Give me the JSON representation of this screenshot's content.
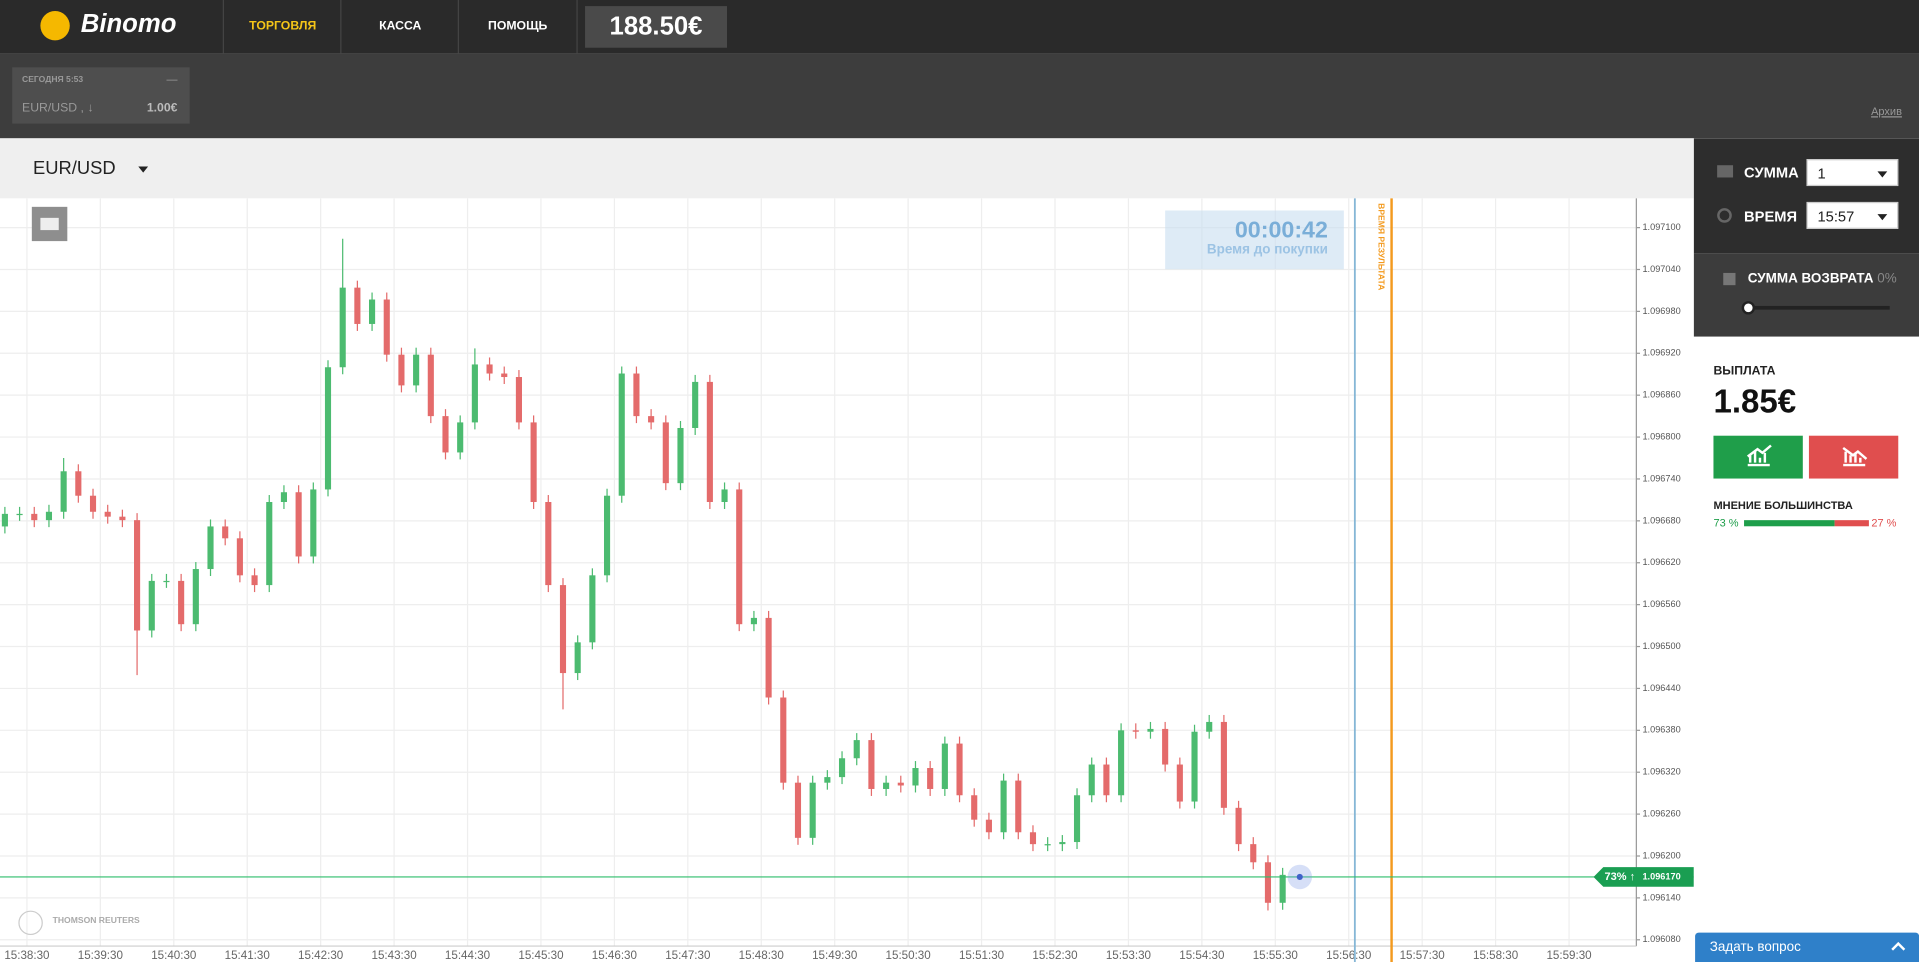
{
  "header": {
    "logo": "Binomo",
    "nav": [
      "ТОРГОВЛЯ",
      "КАССА",
      "ПОМОЩЬ"
    ],
    "balance": "188.50€"
  },
  "deals": {
    "date": "СЕГОДНЯ 5:53",
    "status": "—",
    "asset": "EUR/USD , ↓",
    "amount": "1.00€",
    "archive": "Архив"
  },
  "asset_selector": "EUR/USD",
  "timer": {
    "time": "00:00:42",
    "label": "Время до покупки"
  },
  "watermark": "THOMSON REUTERS",
  "chart_data": {
    "type": "candlestick",
    "up_color": "#4cbb70",
    "down_color": "#e46b6b",
    "price_line_color": "#2ebd6b",
    "grid": true,
    "xlim": [
      "15:38:08",
      "16:00:25"
    ],
    "xticks": [
      "15:38:30",
      "15:39:30",
      "15:40:30",
      "15:41:30",
      "15:42:30",
      "15:43:30",
      "15:44:30",
      "15:45:30",
      "15:46:30",
      "15:47:30",
      "15:48:30",
      "15:49:30",
      "15:50:30",
      "15:51:30",
      "15:52:30",
      "15:53:30",
      "15:54:30",
      "15:55:30",
      "15:56:30",
      "15:57:30",
      "15:58:30",
      "15:59:30"
    ],
    "ylim": [
      1.096071,
      1.097142
    ],
    "yticks": [
      {
        "value": 1.09608,
        "label": "1.096080"
      },
      {
        "value": 1.09614,
        "label": "1.096140"
      },
      {
        "value": 1.0962,
        "label": "1.096200"
      },
      {
        "value": 1.09626,
        "label": "1.096260"
      },
      {
        "value": 1.09632,
        "label": "1.096320"
      },
      {
        "value": 1.09638,
        "label": "1.096380"
      },
      {
        "value": 1.09644,
        "label": "1.096440"
      },
      {
        "value": 1.0965,
        "label": "1.096500"
      },
      {
        "value": 1.09656,
        "label": "1.096560"
      },
      {
        "value": 1.09662,
        "label": "1.096620"
      },
      {
        "value": 1.09668,
        "label": "1.096680"
      },
      {
        "value": 1.09674,
        "label": "1.096740"
      },
      {
        "value": 1.0968,
        "label": "1.096800"
      },
      {
        "value": 1.09686,
        "label": "1.096860"
      },
      {
        "value": 1.09692,
        "label": "1.096920"
      },
      {
        "value": 1.09698,
        "label": "1.096980"
      },
      {
        "value": 1.09704,
        "label": "1.097040"
      },
      {
        "value": 1.0971,
        "label": "1.097100"
      }
    ],
    "x": [
      "15:38:12",
      "15:38:24",
      "15:38:36",
      "15:38:48",
      "15:39:00",
      "15:39:12",
      "15:39:24",
      "15:39:36",
      "15:39:48",
      "15:40:00",
      "15:40:12",
      "15:40:24",
      "15:40:36",
      "15:40:48",
      "15:41:00",
      "15:41:12",
      "15:41:24",
      "15:41:36",
      "15:41:48",
      "15:42:00",
      "15:42:12",
      "15:42:24",
      "15:42:36",
      "15:42:48",
      "15:43:00",
      "15:43:12",
      "15:43:24",
      "15:43:36",
      "15:43:48",
      "15:44:00",
      "15:44:12",
      "15:44:24",
      "15:44:36",
      "15:44:48",
      "15:45:00",
      "15:45:12",
      "15:45:24",
      "15:45:36",
      "15:45:48",
      "15:46:00",
      "15:46:12",
      "15:46:24",
      "15:46:36",
      "15:46:48",
      "15:47:00",
      "15:47:12",
      "15:47:24",
      "15:47:36",
      "15:47:48",
      "15:48:00",
      "15:48:12",
      "15:48:24",
      "15:48:36",
      "15:48:48",
      "15:49:00",
      "15:49:12",
      "15:49:24",
      "15:49:36",
      "15:49:48",
      "15:50:00",
      "15:50:12",
      "15:50:24",
      "15:50:36",
      "15:50:48",
      "15:51:00",
      "15:51:12",
      "15:51:24",
      "15:51:36",
      "15:51:48",
      "15:52:00",
      "15:52:12",
      "15:52:24",
      "15:52:36",
      "15:52:48",
      "15:53:00",
      "15:53:12",
      "15:53:24",
      "15:53:36",
      "15:53:48",
      "15:54:00",
      "15:54:12",
      "15:54:24",
      "15:54:36",
      "15:54:48",
      "15:55:00",
      "15:55:12",
      "15:55:24",
      "15:55:36"
    ],
    "open": [
      1.096672,
      1.09669,
      1.09669,
      1.096681,
      1.096693,
      1.096751,
      1.096716,
      1.096693,
      1.096686,
      1.096681,
      1.096523,
      1.096594,
      1.096594,
      1.096532,
      1.096611,
      1.096672,
      1.096655,
      1.096602,
      1.096588,
      1.096707,
      1.096721,
      1.096629,
      1.096725,
      1.0969,
      1.097014,
      1.096962,
      1.096997,
      1.096918,
      1.096874,
      1.096918,
      1.09683,
      1.096778,
      1.096821,
      1.096904,
      1.096891,
      1.096886,
      1.096821,
      1.096707,
      1.096588,
      1.096462,
      1.096506,
      1.096602,
      1.096716,
      1.096891,
      1.09683,
      1.096821,
      1.096734,
      1.096813,
      1.096879,
      1.096707,
      1.096725,
      1.096532,
      1.096541,
      1.096427,
      1.096305,
      1.096226,
      1.096305,
      1.096313,
      1.09634,
      1.096366,
      1.096296,
      1.096305,
      1.096301,
      1.096326,
      1.096296,
      1.096361,
      1.096287,
      1.096252,
      1.096234,
      1.096308,
      1.096234,
      1.096217,
      1.096217,
      1.09622,
      1.096287,
      1.096331,
      1.096287,
      1.09638,
      1.096378,
      1.096382,
      1.096331,
      1.096278,
      1.096378,
      1.096392,
      1.096269,
      1.096217,
      1.096191,
      1.096133
    ],
    "high": [
      1.0967,
      1.0967,
      1.0967,
      1.096703,
      1.09677,
      1.096761,
      1.096726,
      1.096703,
      1.096696,
      1.096691,
      1.096604,
      1.096604,
      1.096604,
      1.096621,
      1.096682,
      1.096682,
      1.096665,
      1.096612,
      1.096717,
      1.096731,
      1.096731,
      1.096735,
      1.09691,
      1.097084,
      1.097024,
      1.097007,
      1.097007,
      1.096928,
      1.096928,
      1.096928,
      1.09684,
      1.096831,
      1.096927,
      1.096914,
      1.096901,
      1.096896,
      1.096831,
      1.096717,
      1.096598,
      1.096516,
      1.096612,
      1.096726,
      1.096901,
      1.096901,
      1.09684,
      1.096831,
      1.096823,
      1.096889,
      1.096889,
      1.096735,
      1.096735,
      1.096551,
      1.096551,
      1.096437,
      1.096315,
      1.096315,
      1.096323,
      1.09635,
      1.096376,
      1.096376,
      1.096315,
      1.096315,
      1.096336,
      1.096336,
      1.096371,
      1.096371,
      1.096297,
      1.096262,
      1.096318,
      1.096318,
      1.096244,
      1.096227,
      1.09623,
      1.096297,
      1.096341,
      1.096341,
      1.09639,
      1.09639,
      1.096392,
      1.096392,
      1.096341,
      1.096388,
      1.096402,
      1.096402,
      1.096279,
      1.096227,
      1.096201,
      1.096183
    ],
    "low": [
      1.096662,
      1.09668,
      1.096671,
      1.096671,
      1.096683,
      1.096706,
      1.096683,
      1.096676,
      1.096671,
      1.096459,
      1.096513,
      1.096584,
      1.096522,
      1.096522,
      1.096601,
      1.096645,
      1.096592,
      1.096578,
      1.096578,
      1.096697,
      1.096619,
      1.096619,
      1.096715,
      1.09689,
      1.096952,
      1.096952,
      1.096908,
      1.096864,
      1.096864,
      1.09682,
      1.096768,
      1.096768,
      1.096811,
      1.096881,
      1.096876,
      1.096811,
      1.096697,
      1.096578,
      1.09641,
      1.096452,
      1.096496,
      1.096592,
      1.096706,
      1.09682,
      1.096811,
      1.096724,
      1.096724,
      1.096803,
      1.096697,
      1.096697,
      1.096522,
      1.096522,
      1.096417,
      1.096295,
      1.096216,
      1.096216,
      1.096295,
      1.096303,
      1.09633,
      1.096286,
      1.096286,
      1.096291,
      1.096291,
      1.096286,
      1.096286,
      1.096277,
      1.096242,
      1.096224,
      1.096224,
      1.096224,
      1.096207,
      1.096207,
      1.096207,
      1.09621,
      1.096277,
      1.096277,
      1.096277,
      1.096368,
      1.096368,
      1.096321,
      1.096268,
      1.096268,
      1.096368,
      1.096259,
      1.096207,
      1.096181,
      1.096122,
      1.096123
    ],
    "close": [
      1.09669,
      1.09669,
      1.096681,
      1.096693,
      1.096751,
      1.096716,
      1.096693,
      1.096686,
      1.096681,
      1.096523,
      1.096594,
      1.096594,
      1.096532,
      1.096611,
      1.096672,
      1.096655,
      1.096602,
      1.096588,
      1.096707,
      1.096721,
      1.096629,
      1.096725,
      1.0969,
      1.097014,
      1.096962,
      1.096997,
      1.096918,
      1.096874,
      1.096918,
      1.09683,
      1.096778,
      1.096821,
      1.096904,
      1.096891,
      1.096886,
      1.096821,
      1.096707,
      1.096588,
      1.096462,
      1.096506,
      1.096602,
      1.096716,
      1.096891,
      1.09683,
      1.096821,
      1.096734,
      1.096813,
      1.096879,
      1.096707,
      1.096725,
      1.096532,
      1.096541,
      1.096427,
      1.096305,
      1.096226,
      1.096305,
      1.096313,
      1.09634,
      1.096366,
      1.096296,
      1.096305,
      1.096301,
      1.096326,
      1.096296,
      1.096361,
      1.096287,
      1.096252,
      1.096234,
      1.096308,
      1.096234,
      1.096217,
      1.096217,
      1.09622,
      1.096287,
      1.096331,
      1.096287,
      1.09638,
      1.096378,
      1.096382,
      1.096331,
      1.096278,
      1.096378,
      1.096392,
      1.096269,
      1.096217,
      1.096191,
      1.096133,
      1.096173
    ],
    "current_price": {
      "value": 1.09617,
      "label": "1.096170"
    },
    "current_share": "73% ↑",
    "purchase_line": "15:56:35",
    "result_line": "15:57:05",
    "result_label": "ВРЕМЯ РЕЗУЛЬТАТА"
  },
  "panel": {
    "amount_label": "СУММА",
    "amount": "1",
    "time_label": "ВРЕМЯ",
    "time": "15:57",
    "refund_label": "СУММА ВОЗВРАТА",
    "refund_percent": 0,
    "refund_percent_label": "0%",
    "payout_label": "ВЫПЛАТА",
    "payout": "1.85€",
    "majority": {
      "title": "МНЕНИЕ БОЛЬШИНСТВА",
      "values": [
        73,
        27
      ],
      "value_labels": [
        "73 %",
        "27 %"
      ],
      "colors": [
        "#1e9e4a",
        "#e04e4e"
      ]
    },
    "ask": "Задать вопрос"
  }
}
